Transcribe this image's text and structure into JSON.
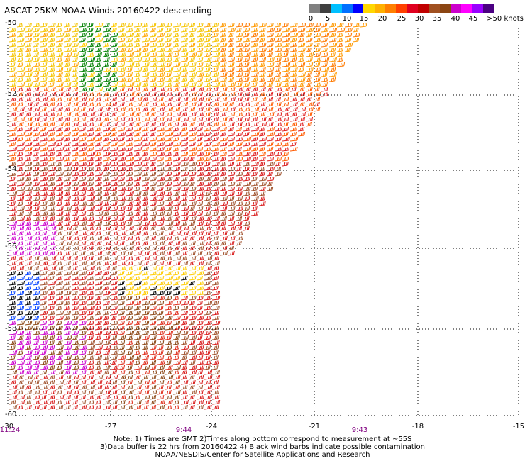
{
  "title": "ASCAT 25KM NOAA Winds 20160422 descending",
  "legend": {
    "labels": [
      "0",
      "5",
      "10",
      "15",
      "20",
      "25",
      "30",
      "35",
      "40",
      "45",
      ">50 knots"
    ],
    "colors": [
      "#808080",
      "#404040",
      "#00c0ff",
      "#0070ff",
      "#0000ff",
      "#ffd700",
      "#ffb000",
      "#ff7f00",
      "#ff4000",
      "#e00020",
      "#c00000",
      "#a05020",
      "#8b4513",
      "#cc00cc",
      "#ff00ff",
      "#9900ff",
      "#4b0082"
    ]
  },
  "map": {
    "lon_labels": [
      "-30",
      "-27",
      "-24",
      "-21",
      "-18",
      "-15"
    ],
    "lat_labels": [
      "-50",
      "-52",
      "-54",
      "-56",
      "-58",
      "-60"
    ],
    "time_labels": [
      "11:24",
      "9:44",
      "9:43"
    ]
  },
  "notes": [
    "Note: 1) Times are GMT 2)Times along bottom correspond to measurement at ~55S",
    "3)Data buffer is 22 hrs from 20160422 4) Black wind barbs indicate possible contamination",
    "NOAA/NESDIS/Center for Satellite Applications and Research"
  ]
}
